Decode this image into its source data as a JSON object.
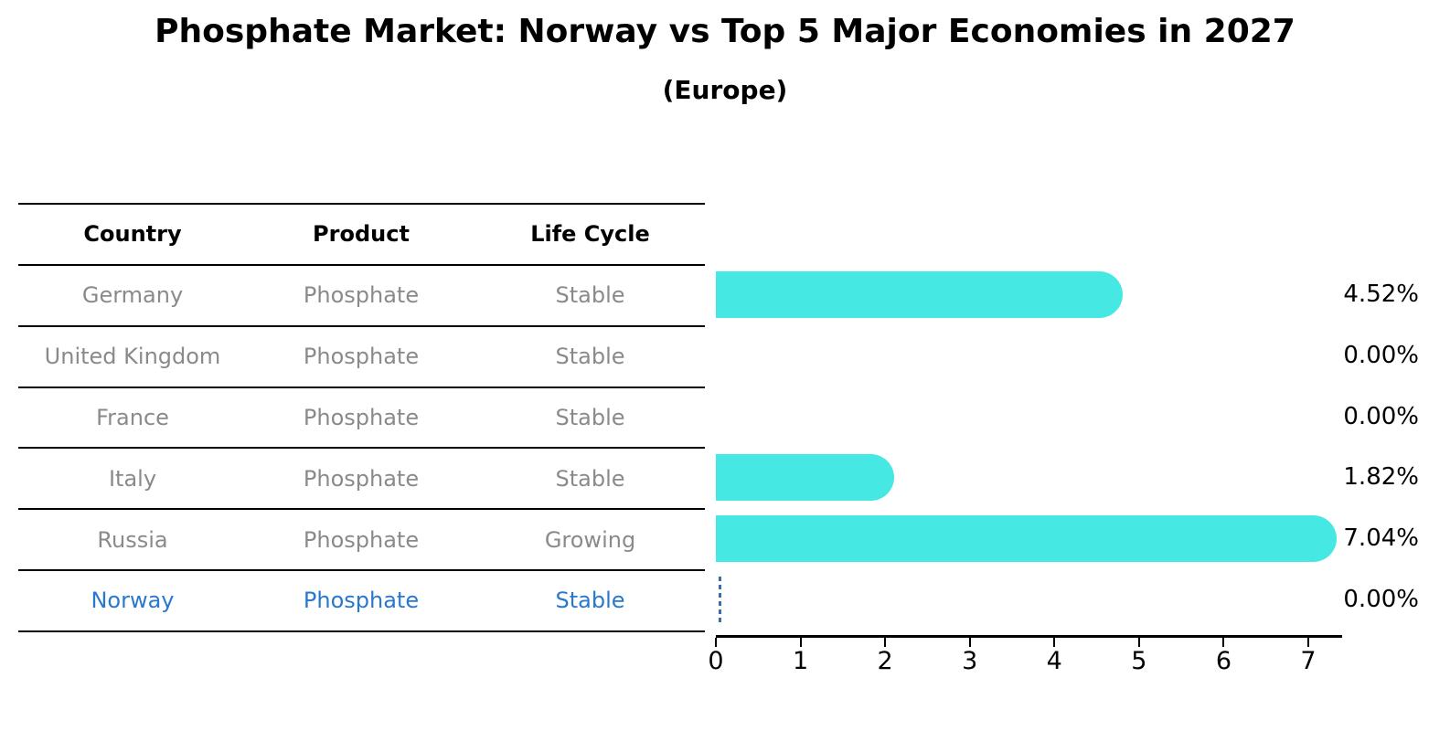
{
  "title": "Phosphate Market: Norway vs Top 5 Major Economies in 2027",
  "subtitle": "(Europe)",
  "table": {
    "headers": [
      "Country",
      "Product",
      "Life Cycle"
    ],
    "rows": [
      {
        "country": "Germany",
        "product": "Phosphate",
        "life_cycle": "Stable",
        "highlight": false
      },
      {
        "country": "United Kingdom",
        "product": "Phosphate",
        "life_cycle": "Stable",
        "highlight": false
      },
      {
        "country": "France",
        "product": "Phosphate",
        "life_cycle": "Stable",
        "highlight": false
      },
      {
        "country": "Italy",
        "product": "Phosphate",
        "life_cycle": "Stable",
        "highlight": false
      },
      {
        "country": "Russia",
        "product": "Phosphate",
        "life_cycle": "Growing",
        "highlight": false
      },
      {
        "country": "Norway",
        "product": "Phosphate",
        "life_cycle": "Stable",
        "highlight": true
      }
    ]
  },
  "chart_data": {
    "type": "bar",
    "orientation": "horizontal",
    "title": "Phosphate Market: Norway vs Top 5 Major Economies in 2027",
    "subtitle": "(Europe)",
    "categories": [
      "Germany",
      "United Kingdom",
      "France",
      "Italy",
      "Russia",
      "Norway"
    ],
    "values": [
      4.52,
      0.0,
      0.0,
      1.82,
      7.04,
      0.0
    ],
    "value_labels": [
      "4.52%",
      "0.00%",
      "0.00%",
      "1.82%",
      "7.04%",
      "0.00%"
    ],
    "x_ticks": [
      "0",
      "1",
      "2",
      "3",
      "4",
      "5",
      "6",
      "7"
    ],
    "xlim": [
      0,
      7.4
    ],
    "grid": false,
    "legend": "none",
    "highlight_index": 5,
    "highlight_marker": "dashed-vertical-line-at-zero"
  },
  "colors": {
    "background": "#ffffff",
    "bar_fill": "#45E8E2",
    "axis_and_lines": "#000000",
    "table_text_muted": "#8a8a8a",
    "table_header_text": "#000000",
    "highlight_text": "#2878CE",
    "highlight_dash": "#3B6EA8",
    "value_label_text": "#000000"
  }
}
